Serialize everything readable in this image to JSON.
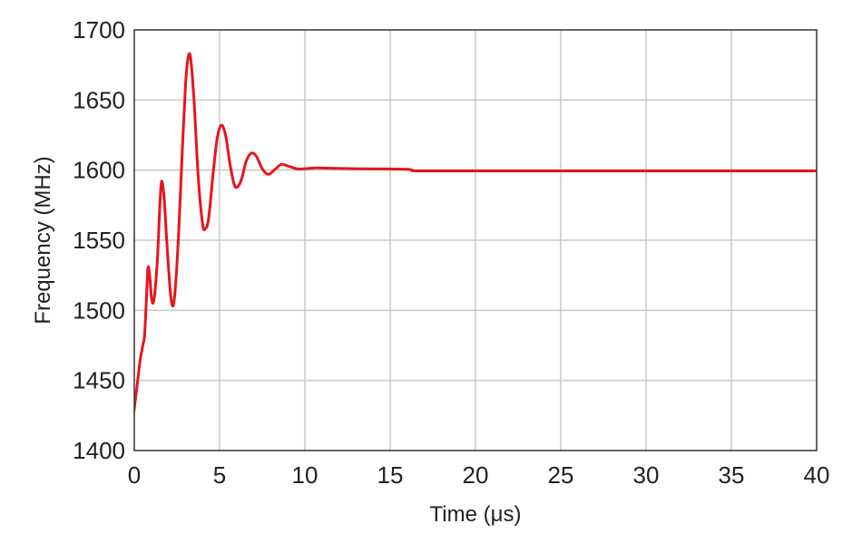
{
  "chart_data": {
    "type": "line",
    "title": "",
    "xlabel": "Time (μs)",
    "ylabel": "Frequency (MHz)",
    "xlim": [
      0,
      40
    ],
    "ylim": [
      1400,
      1700
    ],
    "xticks": [
      0,
      5,
      10,
      15,
      20,
      25,
      30,
      35,
      40
    ],
    "xtick_labels": [
      "0",
      "5",
      "10",
      "15",
      "20",
      "25",
      "30",
      "35",
      "40"
    ],
    "yticks": [
      1400,
      1450,
      1500,
      1550,
      1600,
      1650,
      1700
    ],
    "ytick_labels": [
      "1400",
      "1450",
      "1500",
      "1550",
      "1600",
      "1650",
      "1700"
    ],
    "grid": true,
    "legend": "none",
    "series": [
      {
        "color": "#e8141b",
        "points": [
          [
            -0.3,
            1400
          ],
          [
            -0.15,
            1415
          ],
          [
            0.0,
            1430
          ],
          [
            0.2,
            1450
          ],
          [
            0.35,
            1465
          ],
          [
            0.5,
            1475
          ],
          [
            0.6,
            1482
          ],
          [
            0.7,
            1505
          ],
          [
            0.8,
            1530
          ],
          [
            0.9,
            1525
          ],
          [
            1.0,
            1510
          ],
          [
            1.1,
            1505
          ],
          [
            1.2,
            1512
          ],
          [
            1.35,
            1535
          ],
          [
            1.5,
            1575
          ],
          [
            1.6,
            1592
          ],
          [
            1.75,
            1580
          ],
          [
            1.9,
            1550
          ],
          [
            2.1,
            1515
          ],
          [
            2.25,
            1503
          ],
          [
            2.4,
            1515
          ],
          [
            2.6,
            1555
          ],
          [
            2.8,
            1610
          ],
          [
            3.0,
            1660
          ],
          [
            3.15,
            1680
          ],
          [
            3.3,
            1680
          ],
          [
            3.5,
            1650
          ],
          [
            3.75,
            1595
          ],
          [
            4.0,
            1562
          ],
          [
            4.15,
            1558
          ],
          [
            4.35,
            1565
          ],
          [
            4.6,
            1595
          ],
          [
            4.85,
            1622
          ],
          [
            5.1,
            1632
          ],
          [
            5.35,
            1625
          ],
          [
            5.6,
            1605
          ],
          [
            5.85,
            1590
          ],
          [
            6.05,
            1588
          ],
          [
            6.3,
            1594
          ],
          [
            6.55,
            1606
          ],
          [
            6.85,
            1612
          ],
          [
            7.15,
            1610
          ],
          [
            7.5,
            1601
          ],
          [
            7.85,
            1597
          ],
          [
            8.2,
            1600
          ],
          [
            8.6,
            1604
          ],
          [
            9.0,
            1603
          ],
          [
            9.5,
            1601
          ],
          [
            10.0,
            1601
          ],
          [
            10.5,
            1601.5
          ],
          [
            11.0,
            1601.5
          ],
          [
            13.0,
            1601
          ],
          [
            15.0,
            1600.8
          ],
          [
            16.0,
            1600.6
          ],
          [
            16.3,
            1600
          ],
          [
            16.6,
            1599.5
          ],
          [
            20.0,
            1599.5
          ],
          [
            25.0,
            1599.5
          ],
          [
            30.0,
            1599.5
          ],
          [
            35.0,
            1599.5
          ],
          [
            40.0,
            1599.5
          ]
        ]
      }
    ]
  }
}
